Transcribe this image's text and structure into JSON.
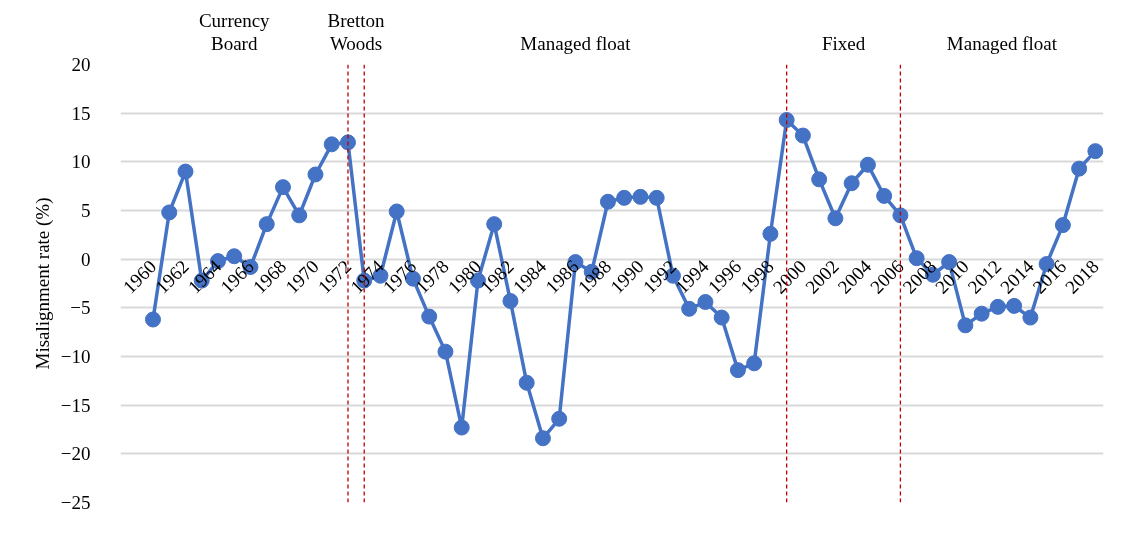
{
  "chart_data": {
    "type": "line",
    "ylabel": "Misalignment rate (%)",
    "x": [
      1960,
      1961,
      1962,
      1963,
      1964,
      1965,
      1966,
      1967,
      1968,
      1969,
      1970,
      1971,
      1972,
      1973,
      1974,
      1975,
      1976,
      1977,
      1978,
      1979,
      1980,
      1981,
      1982,
      1983,
      1984,
      1985,
      1986,
      1987,
      1988,
      1989,
      1990,
      1991,
      1992,
      1993,
      1994,
      1995,
      1996,
      1997,
      1998,
      1999,
      2000,
      2001,
      2002,
      2003,
      2004,
      2005,
      2006,
      2007,
      2008,
      2009,
      2010,
      2011,
      2012,
      2013,
      2014,
      2015,
      2016,
      2017,
      2018
    ],
    "series": [
      {
        "color": "#4472c4",
        "values": [
          -6.2,
          4.8,
          9.0,
          -2.2,
          -0.2,
          0.3,
          -0.8,
          3.6,
          7.4,
          4.5,
          8.7,
          11.8,
          12.0,
          -2.2,
          -1.7,
          4.9,
          -2.0,
          -5.9,
          -9.5,
          -17.3,
          -2.2,
          3.6,
          -4.3,
          -12.7,
          -18.4,
          -16.4,
          -0.3,
          -1.3,
          5.9,
          6.3,
          6.4,
          6.3,
          -1.7,
          -5.1,
          -4.4,
          -6.0,
          -11.4,
          -10.7,
          2.6,
          14.3,
          12.7,
          8.2,
          4.2,
          7.8,
          9.7,
          6.5,
          4.5,
          0.1,
          -1.6,
          -0.3,
          -6.8,
          -5.6,
          -4.9,
          -4.8,
          -6.0,
          -0.5,
          3.5,
          9.3,
          11.1
        ]
      }
    ],
    "xlim": [
      1958,
      2018.5
    ],
    "xticks": [
      1960,
      1962,
      1964,
      1966,
      1968,
      1970,
      1972,
      1974,
      1976,
      1978,
      1980,
      1982,
      1984,
      1986,
      1988,
      1990,
      1992,
      1994,
      1996,
      1998,
      2000,
      2002,
      2004,
      2006,
      2008,
      2010,
      2012,
      2014,
      2016,
      2018
    ],
    "ylim": [
      -25,
      20
    ],
    "yticks": [
      -25,
      -20,
      -15,
      -10,
      -5,
      0,
      5,
      10,
      15,
      20
    ],
    "grid": "y",
    "marker": "circle",
    "line_style": "solid",
    "ref_lines": [
      {
        "axis": "x",
        "value": 1972,
        "color": "#c00000",
        "line_style": "dashed"
      },
      {
        "axis": "x",
        "value": 1973,
        "color": "#c00000",
        "line_style": "dashed"
      },
      {
        "axis": "x",
        "value": 1999,
        "color": "#c00000",
        "line_style": "dashed"
      },
      {
        "axis": "x",
        "value": 2006,
        "color": "#c00000",
        "line_style": "dashed"
      }
    ],
    "annotations": [
      "Currency\nBoard",
      "Bretton\nWoods",
      "Managed float",
      "Fixed",
      "Managed float"
    ]
  }
}
